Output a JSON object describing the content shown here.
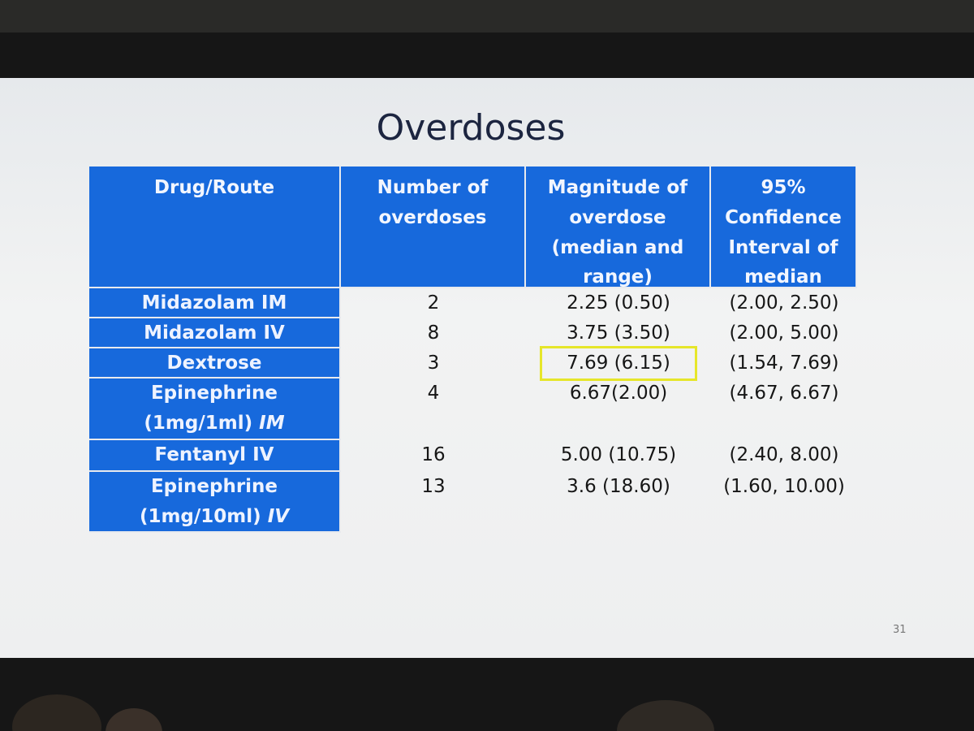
{
  "slide": {
    "title": "Overdoses",
    "page_number": "31",
    "table": {
      "header": [
        "Drug/Route",
        "Number of overdoses",
        "Magnitude of overdose (median and range)",
        "95% Confidence Interval of median"
      ],
      "rows": [
        [
          [
            "Midazolam IM"
          ],
          2,
          "2.25 (0.50)",
          "(2.00, 2.50)"
        ],
        [
          [
            "Midazolam IV"
          ],
          8,
          "3.75 (3.50)",
          "(2.00, 5.00)"
        ],
        [
          [
            "Dextrose"
          ],
          3,
          "7.69 (6.15)",
          "(1.54, 7.69)"
        ],
        [
          [
            "Epinephrine (1mg/1ml)",
            "IM"
          ],
          4,
          "6.67(2.00)",
          "(4.67, 6.67)"
        ],
        [
          [
            "Fentanyl IV"
          ],
          16,
          "5.00 (10.75)",
          "(2.40, 8.00)"
        ],
        [
          [
            "Epinephrine (1mg/10ml)",
            "IV"
          ],
          13,
          "3.6 (18.60)",
          "(1.60, 10.00)"
        ]
      ],
      "highlight": {
        "row": 2,
        "col": 2
      }
    }
  }
}
